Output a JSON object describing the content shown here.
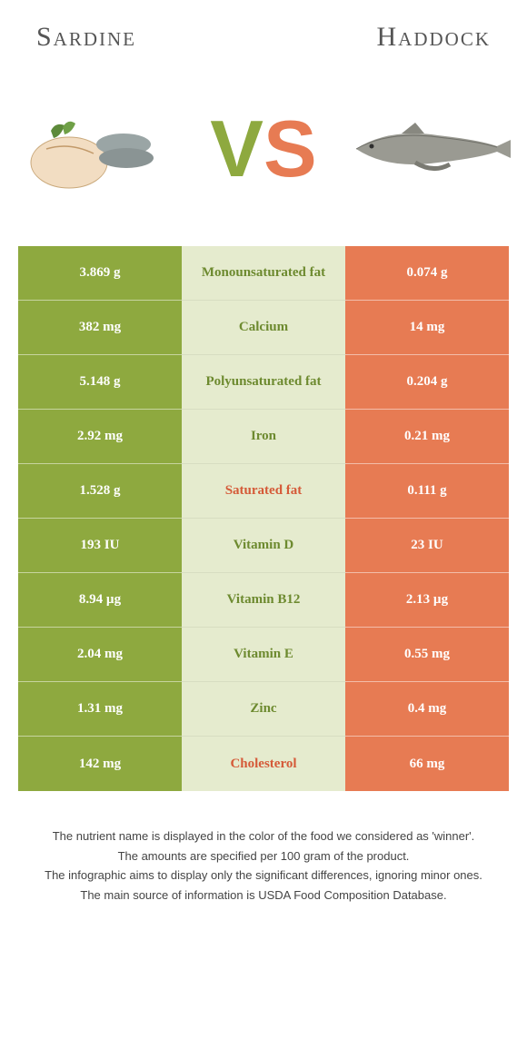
{
  "leftFood": "Sardine",
  "rightFood": "Haddock",
  "vs": {
    "v": "V",
    "s": "S"
  },
  "colors": {
    "leftBg": "#8ea93f",
    "rightBg": "#e77b53",
    "leftText": "#ffffff",
    "rightText": "#ffffff",
    "midBg": "#e5ebce",
    "winnerLeftColor": "#6d8a2f",
    "winnerRightColor": "#d55a38"
  },
  "rows": [
    {
      "left": "3.869 g",
      "label": "Monounsaturated fat",
      "right": "0.074 g",
      "winner": "left"
    },
    {
      "left": "382 mg",
      "label": "Calcium",
      "right": "14 mg",
      "winner": "left"
    },
    {
      "left": "5.148 g",
      "label": "Polyunsaturated fat",
      "right": "0.204 g",
      "winner": "left"
    },
    {
      "left": "2.92 mg",
      "label": "Iron",
      "right": "0.21 mg",
      "winner": "left"
    },
    {
      "left": "1.528 g",
      "label": "Saturated fat",
      "right": "0.111 g",
      "winner": "right"
    },
    {
      "left": "193 IU",
      "label": "Vitamin D",
      "right": "23 IU",
      "winner": "left"
    },
    {
      "left": "8.94 µg",
      "label": "Vitamin B12",
      "right": "2.13 µg",
      "winner": "left"
    },
    {
      "left": "2.04 mg",
      "label": "Vitamin E",
      "right": "0.55 mg",
      "winner": "left"
    },
    {
      "left": "1.31 mg",
      "label": "Zinc",
      "right": "0.4 mg",
      "winner": "left"
    },
    {
      "left": "142 mg",
      "label": "Cholesterol",
      "right": "66 mg",
      "winner": "right"
    }
  ],
  "footer": [
    "The nutrient name is displayed in the color of the food we considered as 'winner'.",
    "The amounts are specified per 100 gram of the product.",
    "The infographic aims to display only the significant differences, ignoring minor ones.",
    "The main source of information is USDA Food Composition Database."
  ]
}
